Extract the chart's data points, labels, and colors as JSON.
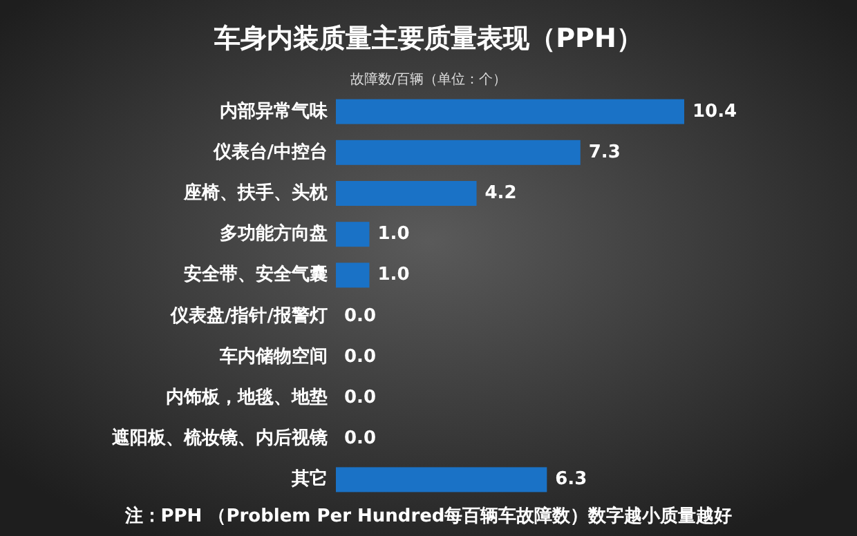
{
  "chart_data": {
    "type": "bar",
    "orientation": "horizontal",
    "title": "车身内装质量主要质量表现（PPH）",
    "subtitle": "故障数/百辆（单位：个）",
    "categories": [
      "内部异常气味",
      "仪表台/中控台",
      "座椅、扶手、头枕",
      "多功能方向盘",
      "安全带、安全气囊",
      "仪表盘/指针/报警灯",
      "车内储物空间",
      "内饰板，地毯、地垫",
      "遮阳板、梳妆镜、内后视镜",
      "其它"
    ],
    "values": [
      10.4,
      7.3,
      4.2,
      1.0,
      1.0,
      0.0,
      0.0,
      0.0,
      0.0,
      6.3
    ],
    "value_labels": [
      "10.4",
      "7.3",
      "4.2",
      "1.0",
      "1.0",
      "0.0",
      "0.0",
      "0.0",
      "0.0",
      "6.3"
    ],
    "color": "#1a72c6",
    "annotations": [
      "注：PPH （Problem Per Hundred每百辆车故障数）数字越小质量越好"
    ]
  }
}
